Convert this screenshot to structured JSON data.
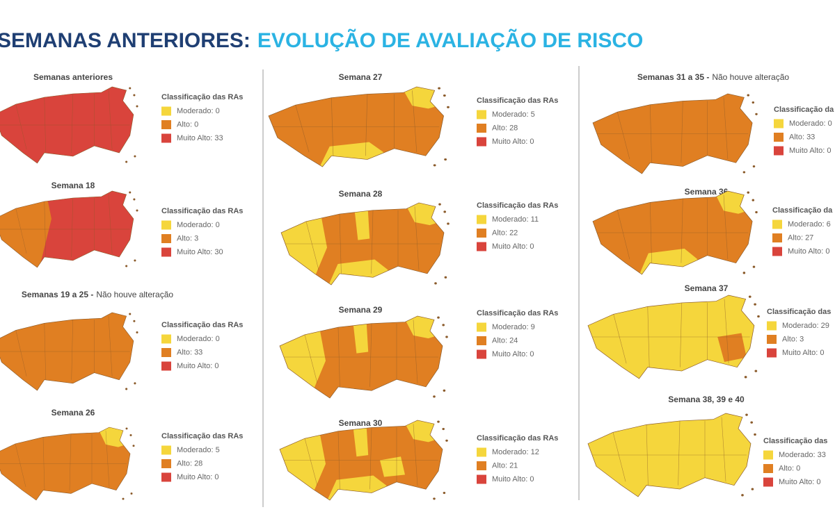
{
  "header": {
    "title_part1": "SEMANAS ANTERIORES:",
    "title_part2": "EVOLUÇÃO DE AVALIAÇÃO DE RISCO"
  },
  "panels": [
    {
      "title": "Semanas anteriores",
      "legend_title": "Classificação das RAs",
      "legend": [
        "Moderado: 0",
        "Alto: 0",
        "Muito Alto: 33"
      ]
    },
    {
      "title": "Semana 18",
      "legend_title": "Classificação das RAs",
      "legend": [
        "Moderado: 0",
        "Alto: 3",
        "Muito Alto: 30"
      ]
    },
    {
      "title": "Semanas 19 a 25 -",
      "note": "Não houve alteração",
      "legend_title": "Classificação das RAs",
      "legend": [
        "Moderado: 0",
        "Alto: 33",
        "Muito Alto: 0"
      ]
    },
    {
      "title": "Semana 26",
      "legend_title": "Classificação das RAs",
      "legend": [
        "Moderado: 5",
        "Alto: 28",
        "Muito Alto: 0"
      ]
    },
    {
      "title": "Semana 27",
      "legend_title": "Classificação das RAs",
      "legend": [
        "Moderado: 5",
        "Alto: 28",
        "Muito Alto: 0"
      ]
    },
    {
      "title": "Semana 28",
      "legend_title": "Classificação das RAs",
      "legend": [
        "Moderado: 11",
        "Alto: 22",
        "Muito Alto: 0"
      ]
    },
    {
      "title": "Semana 29",
      "legend_title": "Classificação das RAs",
      "legend": [
        "Moderado: 9",
        "Alto: 24",
        "Muito Alto: 0"
      ]
    },
    {
      "title": "Semana 30",
      "legend_title": "Classificação das RAs",
      "legend": [
        "Moderado: 12",
        "Alto: 21",
        "Muito Alto: 0"
      ]
    },
    {
      "title": "Semanas 31 a 35 -",
      "note": "Não houve alteração",
      "legend_title": "Classificação da",
      "legend": [
        "Moderado: 0",
        "Alto: 33",
        "Muito Alto: 0"
      ]
    },
    {
      "title": "Semana 36",
      "legend_title": "Classificação da",
      "legend": [
        "Moderado: 6",
        "Alto: 27",
        "Muito Alto: 0"
      ]
    },
    {
      "title": "Semana 37",
      "legend_title": "Classificação das",
      "legend": [
        "Moderado: 29",
        "Alto: 3",
        "Muito Alto: 0"
      ]
    },
    {
      "title": "Semana 38, 39 e 40",
      "legend_title": "Classificação das",
      "legend": [
        "Moderado: 33",
        "Alto: 0",
        "Muito Alto: 0"
      ]
    }
  ]
}
